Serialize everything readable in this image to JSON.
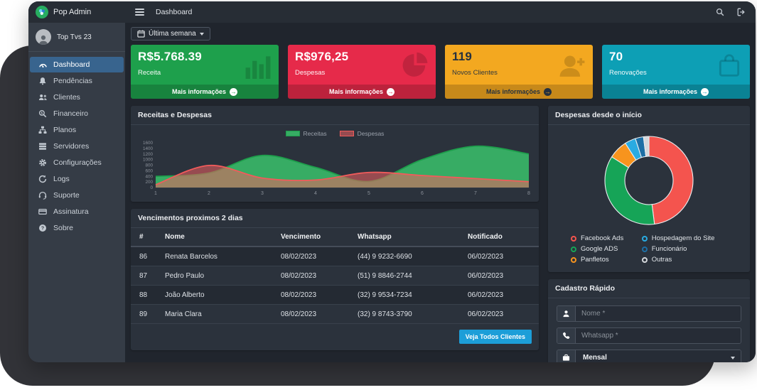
{
  "topbar": {
    "title": "Dashboard"
  },
  "sidebar": {
    "brand": "Pop Admin",
    "user": "Top Tvs 23",
    "items": [
      {
        "label": "Dashboard",
        "icon": "gauge-icon",
        "active": true
      },
      {
        "label": "Pendências",
        "icon": "bell-icon",
        "active": false
      },
      {
        "label": "Clientes",
        "icon": "users-icon",
        "active": false
      },
      {
        "label": "Financeiro",
        "icon": "search-dollar-icon",
        "active": false
      },
      {
        "label": "Planos",
        "icon": "sitemap-icon",
        "active": false
      },
      {
        "label": "Servidores",
        "icon": "server-icon",
        "active": false
      },
      {
        "label": "Configurações",
        "icon": "gear-icon",
        "active": false
      },
      {
        "label": "Logs",
        "icon": "sync-icon",
        "active": false
      },
      {
        "label": "Suporte",
        "icon": "headset-icon",
        "active": false
      },
      {
        "label": "Assinatura",
        "icon": "credit-card-icon",
        "active": false
      },
      {
        "label": "Sobre",
        "icon": "question-circle-icon",
        "active": false
      }
    ]
  },
  "filter_button": {
    "label": "Última semana"
  },
  "stat_cards": [
    {
      "value": "R$5.768.39",
      "label": "Receita",
      "footer_label": "Mais informações",
      "bg": "#1ea04c",
      "text_color": "#ffffff",
      "footer_text_color": "#ffffff",
      "icon": "bar-chart-icon"
    },
    {
      "value": "R$976,25",
      "label": "Despesas",
      "footer_label": "Mais informações",
      "bg": "#e62a4a",
      "text_color": "#ffffff",
      "footer_text_color": "#ffffff",
      "icon": "pie-chart-icon"
    },
    {
      "value": "119",
      "label": "Novos Clientes",
      "footer_label": "Mais informações",
      "bg": "#f3a820",
      "text_color": "#25313f",
      "footer_text_color": "#25313f",
      "icon": "user-plus-icon"
    },
    {
      "value": "70",
      "label": "Renovações",
      "footer_label": "Mais informações",
      "bg": "#0d9fb5",
      "text_color": "#ffffff",
      "footer_text_color": "#ffffff",
      "icon": "shopping-bag-icon"
    }
  ],
  "chart_data": [
    {
      "type": "area",
      "title": "Receitas e Despesas",
      "x": [
        "1",
        "2",
        "3",
        "4",
        "5",
        "6",
        "7",
        "8"
      ],
      "series": [
        {
          "name": "Receitas",
          "color": "#1d9e4b",
          "fill": "rgba(56,185,104,0.9)",
          "values": [
            400,
            520,
            1150,
            720,
            220,
            1000,
            1480,
            1200
          ]
        },
        {
          "name": "Despesas",
          "color": "#f15b5b",
          "fill": "rgba(241,97,97,0.55)",
          "values": [
            100,
            790,
            340,
            270,
            540,
            430,
            320,
            210
          ]
        }
      ],
      "ylim": [
        0,
        1600
      ],
      "ytick_step": 200,
      "legend_position": "top",
      "grid": false
    },
    {
      "type": "donut",
      "title": "Despesas desde o início",
      "labels": [
        "Facebook Ads",
        "Google ADS",
        "Panfletos",
        "Hospedagem do Site",
        "Funcionário",
        "Outras"
      ],
      "values": [
        48,
        36,
        7,
        4,
        3,
        2
      ],
      "colors": [
        "#f4544e",
        "#16a457",
        "#f7941e",
        "#29abe2",
        "#1d6fa5",
        "#d5d8dc"
      ],
      "legend_position": "bottom"
    }
  ],
  "due_table": {
    "title": "Vencimentos proximos 2 dias",
    "columns": [
      "#",
      "Nome",
      "Vencimento",
      "Whatsapp",
      "Notificado"
    ],
    "rows": [
      [
        "86",
        "Renata Barcelos",
        "08/02/2023",
        "(44) 9 9232-6690",
        "06/02/2023"
      ],
      [
        "87",
        "Pedro Paulo",
        "08/02/2023",
        "(51) 9 8846-2744",
        "06/02/2023"
      ],
      [
        "88",
        "João Alberto",
        "08/02/2023",
        "(32) 9 9534-7234",
        "06/02/2023"
      ],
      [
        "89",
        "Maria Clara",
        "08/02/2023",
        "(32) 9 8743-3790",
        "06/02/2023"
      ]
    ],
    "button_label": "Veja Todos Clientes"
  },
  "quick_form": {
    "title": "Cadastro Rápido",
    "fields": [
      {
        "icon": "user-icon",
        "placeholder": "Nome *"
      },
      {
        "icon": "phone-icon",
        "placeholder": "Whatsapp *"
      },
      {
        "icon": "briefcase-icon",
        "type": "select",
        "value": "Mensal"
      }
    ]
  }
}
